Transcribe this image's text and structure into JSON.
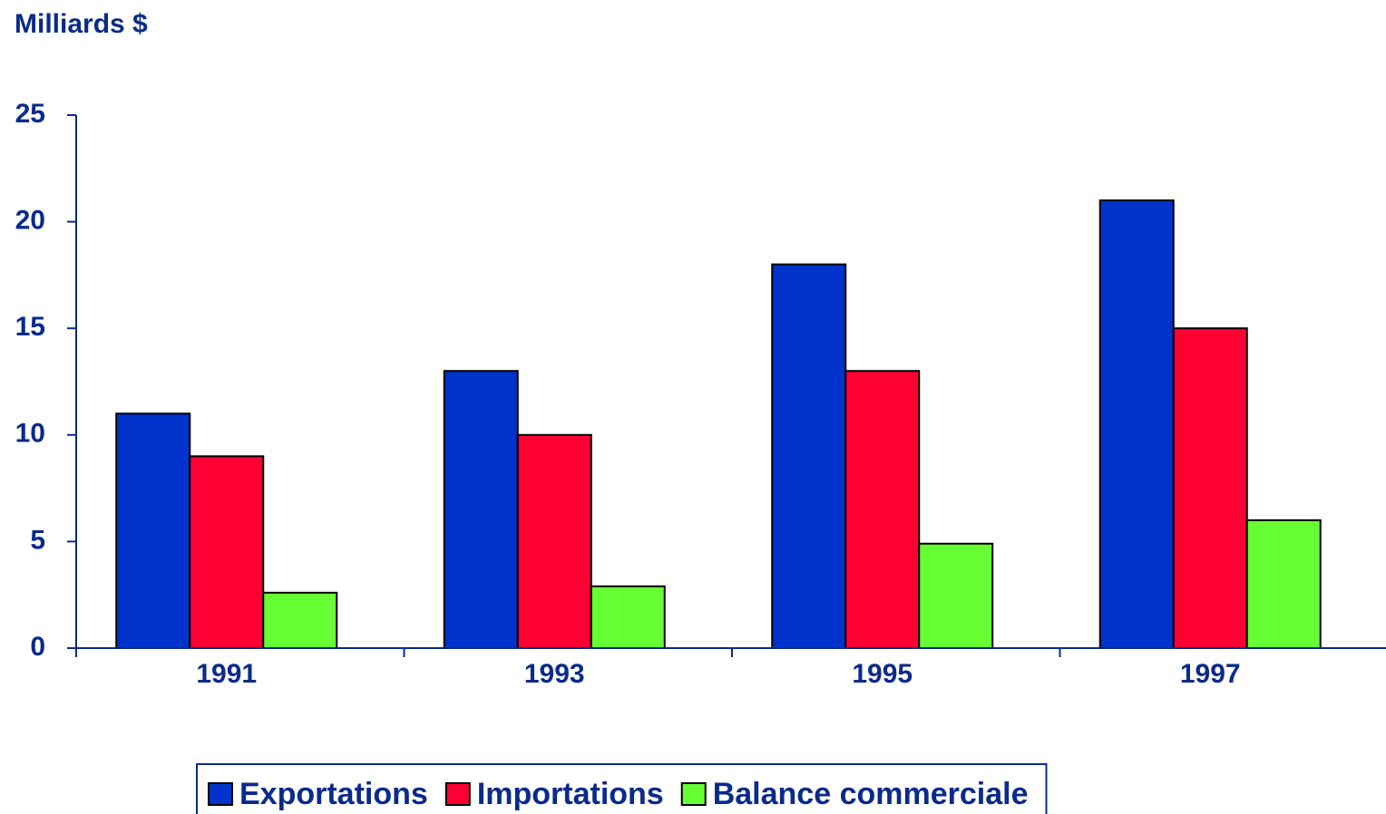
{
  "chart_data": {
    "type": "bar",
    "y_label": "Milliards $",
    "categories": [
      "1991",
      "1993",
      "1995",
      "1997"
    ],
    "series": [
      {
        "name": "Exportations",
        "color": "#0033cc",
        "values": [
          11,
          13,
          18,
          21
        ]
      },
      {
        "name": "Importations",
        "color": "#ff0033",
        "values": [
          9,
          10,
          13,
          15
        ]
      },
      {
        "name": "Balance commerciale",
        "color": "#66ff33",
        "values": [
          2.6,
          2.9,
          4.9,
          6
        ]
      }
    ],
    "ylim": [
      0,
      25
    ],
    "yticks": [
      0,
      5,
      10,
      15,
      20,
      25
    ],
    "grid": false,
    "legend": "bottom"
  }
}
